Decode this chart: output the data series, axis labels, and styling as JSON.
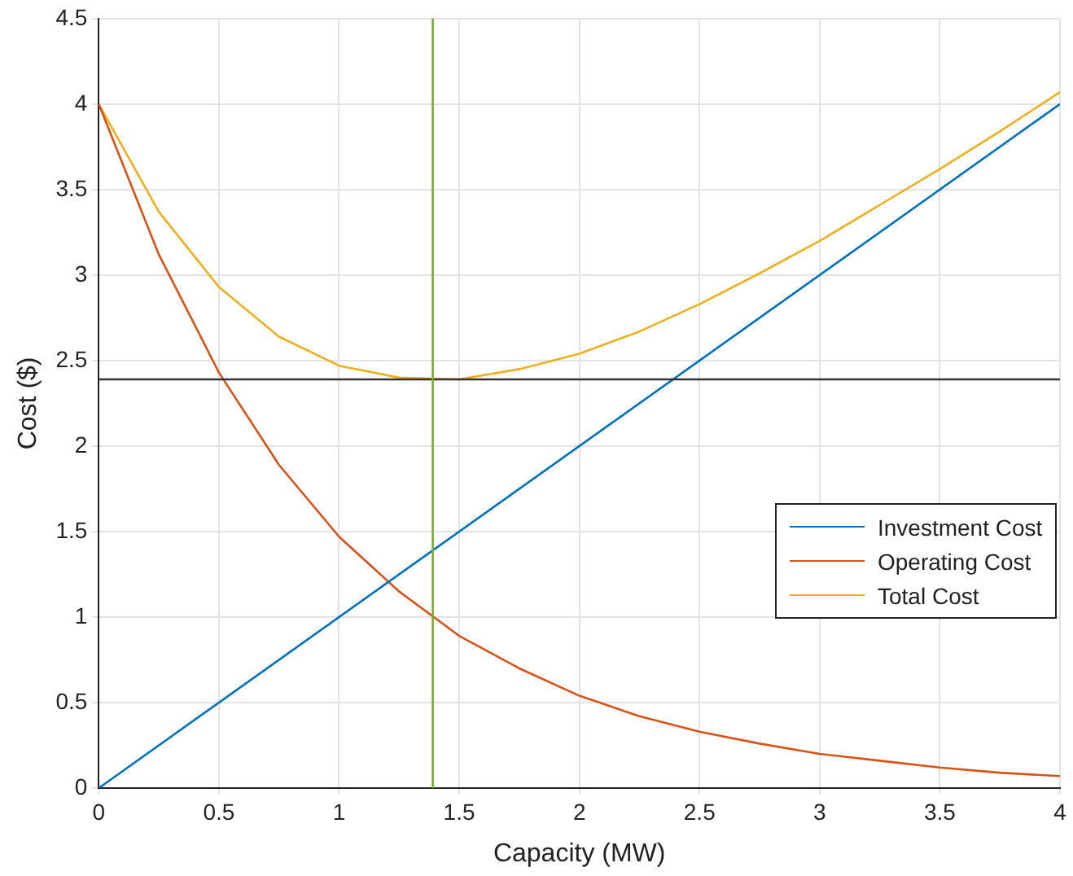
{
  "chart_data": {
    "type": "line",
    "xlabel": "Capacity (MW)",
    "ylabel": "Cost ($)",
    "x": [
      0,
      0.25,
      0.5,
      0.75,
      1,
      1.25,
      1.5,
      1.75,
      2,
      2.25,
      2.5,
      2.75,
      3,
      3.25,
      3.5,
      3.75,
      4
    ],
    "series": [
      {
        "name": "Investment Cost",
        "color": "#0072bd",
        "x": [
          0,
          4
        ],
        "values": [
          0,
          4
        ]
      },
      {
        "name": "Operating Cost",
        "color": "#d95319",
        "values": [
          4,
          3.12,
          2.43,
          1.89,
          1.47,
          1.15,
          0.89,
          0.7,
          0.54,
          0.42,
          0.33,
          0.26,
          0.2,
          0.16,
          0.12,
          0.09,
          0.07
        ]
      },
      {
        "name": "Total Cost",
        "color": "#edb120",
        "values": [
          4,
          3.37,
          2.93,
          2.64,
          2.47,
          2.4,
          2.39,
          2.45,
          2.54,
          2.67,
          2.83,
          3.01,
          3.2,
          3.41,
          3.62,
          3.84,
          4.07
        ]
      }
    ],
    "ref_lines": [
      {
        "axis": "y",
        "value": 2.39,
        "color": "#333333"
      },
      {
        "axis": "x",
        "value": 1.39,
        "color": "#77ac30"
      }
    ],
    "xlim": [
      0,
      4
    ],
    "xticks": [
      0,
      0.5,
      1,
      1.5,
      2,
      2.5,
      3,
      3.5,
      4
    ],
    "ylim": [
      0,
      4.5
    ],
    "yticks": [
      0,
      0.5,
      1,
      1.5,
      2,
      2.5,
      3,
      3.5,
      4,
      4.5
    ],
    "grid": true,
    "legend": "right",
    "marker": "none",
    "line_style": "solid"
  }
}
